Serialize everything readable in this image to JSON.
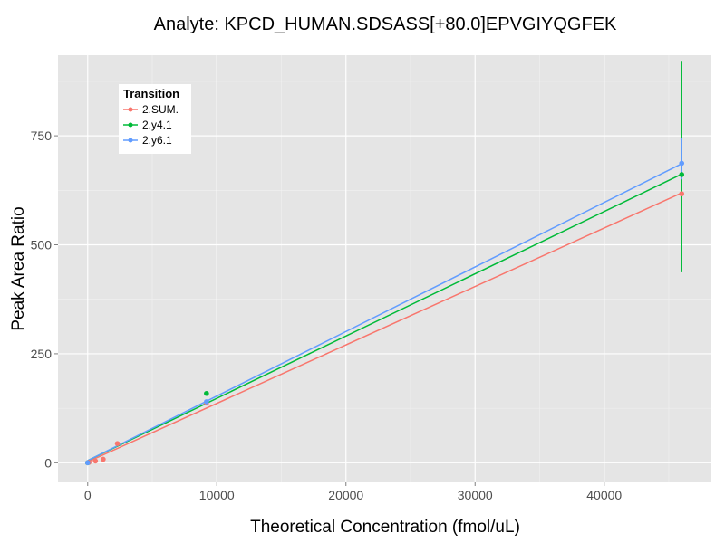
{
  "chart_data": {
    "type": "line",
    "title": "Analyte: KPCD_HUMAN.SDSASS[+80.0]EPVGIYQGFEK",
    "xlabel": "Theoretical Concentration (fmol/uL)",
    "ylabel": "Peak Area Ratio",
    "xlim": [
      -2300,
      48300
    ],
    "ylim": [
      -45,
      935
    ],
    "x_ticks": [
      0,
      10000,
      20000,
      30000,
      40000
    ],
    "y_ticks": [
      0,
      250,
      500,
      750
    ],
    "x_tick_labels": [
      "0",
      "10000",
      "20000",
      "30000",
      "40000"
    ],
    "y_tick_labels": [
      "0",
      "250",
      "500",
      "750"
    ],
    "grid": true,
    "legend": {
      "title": "Transition",
      "position": "top-left"
    },
    "series": [
      {
        "name": "2.SUM.",
        "color": "#F8766D",
        "points": [
          [
            0,
            0
          ],
          [
            100,
            1
          ],
          [
            600,
            4
          ],
          [
            1200,
            8
          ],
          [
            2300,
            44
          ],
          [
            9200,
            137
          ],
          [
            46000,
            617
          ]
        ],
        "fit": [
          [
            0,
            2
          ],
          [
            46000,
            619
          ]
        ]
      },
      {
        "name": "2.y4.1",
        "color": "#00BA38",
        "points": [
          [
            0,
            0
          ],
          [
            9200,
            159
          ],
          [
            46000,
            661
          ]
        ],
        "fit": [
          [
            0,
            5
          ],
          [
            46000,
            662
          ]
        ],
        "error_bars": [
          {
            "x": 46000,
            "low": 437,
            "high": 922
          }
        ]
      },
      {
        "name": "2.y6.1",
        "color": "#619CFF",
        "points": [
          [
            0,
            0
          ],
          [
            9200,
            140
          ],
          [
            46000,
            687
          ]
        ],
        "fit": [
          [
            0,
            5
          ],
          [
            46000,
            686
          ]
        ],
        "error_bars": [
          {
            "x": 46000,
            "low": 650,
            "high": 745
          }
        ]
      }
    ]
  }
}
